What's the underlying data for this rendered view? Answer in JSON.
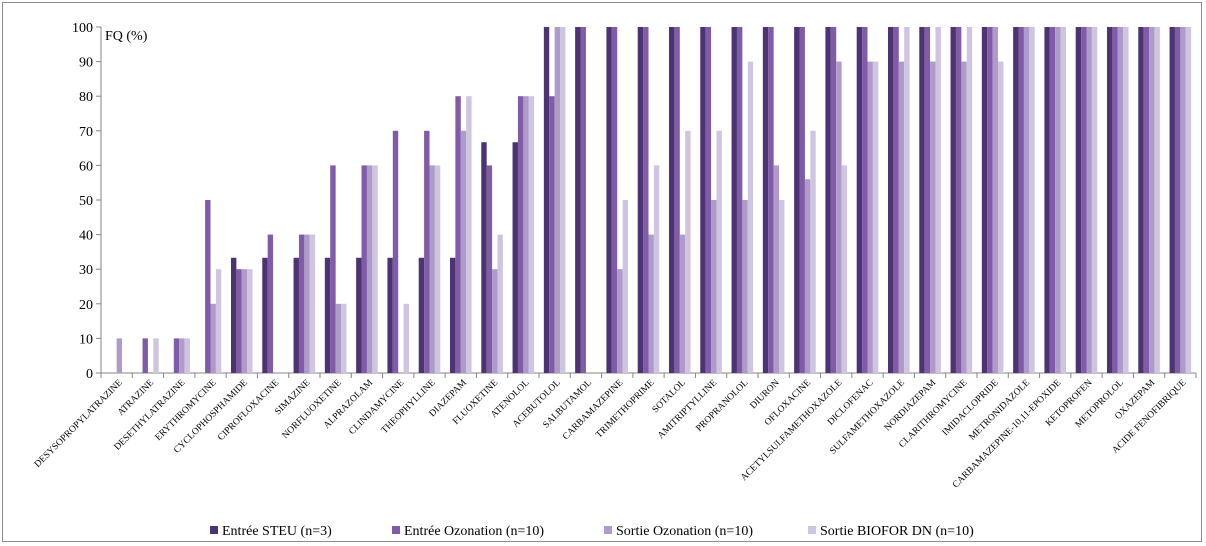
{
  "chart_data": {
    "type": "bar",
    "ylabel": "FQ (%)",
    "ylim": [
      0,
      100
    ],
    "yticks": [
      0,
      10,
      20,
      30,
      40,
      50,
      60,
      70,
      80,
      90,
      100
    ],
    "grid": false,
    "legend_position": "bottom",
    "categories": [
      "DESYSOPROPYLATRAZINE",
      "ATRAZINE",
      "DESETHYLATRAZINE",
      "ERYTHROMYCINE",
      "CYCLOPHOSPHAMIDE",
      "CIPROFLOXACINE",
      "SIMAZINE",
      "NORFLUOXETINE",
      "ALPRAZOLAM",
      "CLINDAMYCINE",
      "THEOPHYLLINE",
      "DIAZEPAM",
      "FLUOXETINE",
      "ATENOLOL",
      "ACEBUTOLOL",
      "SALBUTAMOL",
      "CARBAMAZEPINE",
      "TRIMETHOPRIME",
      "SOTALOL",
      "AMITRIPTYLLINE",
      "PROPRANOLOL",
      "DIURON",
      "OFLOXACINE",
      "ACETYLSULFAMETHOXAZOLE",
      "DICLOFENAC",
      "SULFAMETHOXAZOLE",
      "NORDIAZEPAM",
      "CLARITHROMYCINE",
      "IMIDACLOPRIDE",
      "METRONIDAZOLE",
      "CARBAMAZEPINE-10,11-EPOXIDE",
      "KETOPROFEN",
      "METOPROLOL",
      "OXAZEPAM",
      "ACIDE FENOFIBRIQUE"
    ],
    "series": [
      {
        "name": "Entrée STEU (n=3)",
        "color": "#4b3471",
        "values": [
          0,
          0,
          0,
          0,
          33.3,
          33.3,
          33.3,
          33.3,
          33.3,
          33.3,
          33.3,
          33.3,
          66.7,
          66.7,
          100,
          100,
          100,
          100,
          100,
          100,
          100,
          100,
          100,
          100,
          100,
          100,
          100,
          100,
          100,
          100,
          100,
          100,
          100,
          100,
          100
        ]
      },
      {
        "name": "Entrée Ozonation (n=10)",
        "color": "#7f5ba8",
        "values": [
          0,
          10,
          10,
          50,
          30,
          40,
          40,
          60,
          60,
          70,
          70,
          80,
          60,
          80,
          80,
          100,
          100,
          100,
          100,
          100,
          100,
          100,
          100,
          100,
          100,
          100,
          100,
          100,
          100,
          100,
          100,
          100,
          100,
          100,
          100
        ]
      },
      {
        "name": "Sortie Ozonation (n=10)",
        "color": "#ae9bc9",
        "values": [
          10,
          0,
          10,
          20,
          30,
          0,
          40,
          20,
          60,
          0,
          60,
          70,
          30,
          80,
          100,
          0,
          30,
          40,
          40,
          50,
          50,
          60,
          56,
          90,
          90,
          90,
          90,
          90,
          100,
          100,
          100,
          100,
          100,
          100,
          100
        ]
      },
      {
        "name": "Sortie BIOFOR DN (n=10)",
        "color": "#cfc5e0",
        "values": [
          0,
          10,
          10,
          30,
          30,
          0,
          40,
          20,
          60,
          20,
          60,
          80,
          40,
          80,
          100,
          0,
          50,
          60,
          70,
          70,
          90,
          50,
          70,
          60,
          90,
          100,
          100,
          100,
          90,
          100,
          100,
          100,
          100,
          100,
          100
        ]
      }
    ]
  }
}
